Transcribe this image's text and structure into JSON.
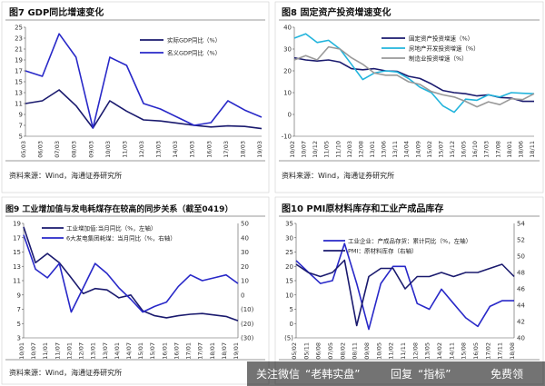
{
  "chart_data": [
    {
      "id": "fig7",
      "type": "line",
      "title": "图7 GDP同比增速变化",
      "x": [
        "05/03",
        "06/03",
        "07/03",
        "08/03",
        "09/03",
        "10/03",
        "11/03",
        "12/03",
        "13/03",
        "14/03",
        "15/03",
        "16/03",
        "17/03",
        "18/03",
        "19/03"
      ],
      "ylim": [
        5,
        25
      ],
      "yticks": [
        5,
        7,
        9,
        11,
        13,
        15,
        17,
        19,
        21,
        23,
        25
      ],
      "series": [
        {
          "name": "实际GDP同比（%）",
          "color": "#1a1a6e",
          "values": [
            11,
            11.5,
            13.5,
            10.6,
            6.5,
            11.5,
            9.6,
            8,
            7.8,
            7.4,
            7,
            6.7,
            6.9,
            6.8,
            6.4
          ]
        },
        {
          "name": "名义GDP同比（%）",
          "color": "#2828c8",
          "values": [
            17,
            16,
            23.8,
            19.5,
            6.5,
            19.5,
            18,
            11,
            10,
            8.5,
            7,
            7.5,
            11.5,
            9.8,
            8.5
          ]
        }
      ],
      "source": "资料来源：Wind，海通证券研究所"
    },
    {
      "id": "fig8",
      "type": "line",
      "title": "图8 固定资产投资增速变化",
      "x": [
        "10/02",
        "10/07",
        "10/12",
        "11/05",
        "11/10",
        "12/03",
        "12/08",
        "13/01",
        "13/06",
        "13/11",
        "14/04",
        "14/09",
        "15/02",
        "15/07",
        "15/12",
        "16/05",
        "16/10",
        "17/03",
        "17/08",
        "18/01",
        "18/06",
        "18/11"
      ],
      "ylim": [
        -10,
        40
      ],
      "yticks": [
        -10,
        0,
        10,
        20,
        30,
        40
      ],
      "series": [
        {
          "name": "固定资产投资增速（%）",
          "color": "#1a1a6e",
          "values": [
            26,
            25,
            24.5,
            25,
            24,
            21,
            20.5,
            21,
            20,
            19.8,
            17.5,
            16.5,
            14,
            11,
            10,
            9.5,
            8.5,
            9,
            7.8,
            7.5,
            6,
            6
          ]
        },
        {
          "name": "房地产开发投资增速（%）",
          "color": "#22b4dc",
          "values": [
            35,
            37,
            33,
            34,
            30,
            23,
            16,
            19,
            20,
            19.5,
            16.5,
            12.5,
            10,
            4,
            1,
            7,
            6.5,
            9,
            8,
            10,
            9.7,
            9.5
          ]
        },
        {
          "name": "制造业投资增速（%）",
          "color": "#999999",
          "values": [
            25,
            27,
            25,
            31,
            30,
            26,
            23,
            19,
            18,
            18,
            15,
            13.8,
            10.5,
            9,
            8,
            6,
            3.5,
            5.8,
            4.5,
            7.2,
            6.8,
            9.5
          ]
        }
      ],
      "source": "资料来源：Wind，海通证券研究所"
    },
    {
      "id": "fig9",
      "type": "line",
      "title": "图9 工业增加值与发电耗煤存在较高的同步关系（截至0419）",
      "x": [
        "10/01",
        "10/07",
        "11/01",
        "11/07",
        "12/01",
        "12/07",
        "13/01",
        "13/07",
        "14/01",
        "14/07",
        "15/01",
        "15/07",
        "16/01",
        "16/07",
        "17/01",
        "17/07",
        "18/01",
        "18/07",
        "19/01"
      ],
      "ylim": [
        3,
        19
      ],
      "yticks": [
        3,
        5,
        7,
        9,
        11,
        13,
        15,
        17,
        19
      ],
      "y2lim": [
        -30,
        50
      ],
      "y2ticks": [
        "(30)",
        "(20)",
        "(10)",
        "0",
        "10",
        "20",
        "30",
        "40",
        "50"
      ],
      "series": [
        {
          "name": "工业增加值:当月同比（%，左轴）",
          "color": "#1a1a6e",
          "axis": "left",
          "values": [
            18.5,
            13.5,
            14.8,
            13.5,
            11.4,
            9.2,
            9.9,
            9.7,
            8.6,
            9,
            6.8,
            6.1,
            5.8,
            6.1,
            6.3,
            6.4,
            6.2,
            6,
            5.4
          ]
        },
        {
          "name": "6大发电集团耗煤：当月同比（%，右轴）",
          "color": "#2828c8",
          "axis": "right",
          "values": [
            42,
            18,
            12,
            22,
            -12,
            5,
            22,
            15,
            5,
            -3,
            -12,
            -8,
            -5,
            6,
            14,
            10,
            12,
            14,
            8
          ]
        }
      ],
      "source": "资料来源：Wind，海通证券研究所"
    },
    {
      "id": "fig10",
      "type": "line",
      "title": "图10 PMI原材料库存和工业产成品库存",
      "x": [
        "05/02",
        "05/11",
        "06/08",
        "07/05",
        "08/02",
        "08/11",
        "09/08",
        "10/05",
        "11/02",
        "11/11",
        "12/08",
        "13/05",
        "14/02",
        "14/11",
        "15/08",
        "16/05",
        "17/02",
        "17/11",
        "18/08"
      ],
      "ylim": [
        -5,
        35
      ],
      "yticks": [
        "(5)",
        "0",
        "5",
        "10",
        "15",
        "20",
        "25",
        "30",
        "35"
      ],
      "y2lim": [
        40,
        54
      ],
      "y2ticks": [
        40,
        42,
        44,
        46,
        48,
        50,
        52,
        54
      ],
      "series": [
        {
          "name": "工业企业：产成品存货：累计同比（%，左轴）",
          "color": "#2828c8",
          "axis": "left",
          "values": [
            22,
            18,
            14,
            15,
            28,
            14,
            -2,
            14,
            20,
            20,
            7,
            5,
            12,
            7,
            2,
            -1,
            6,
            8,
            8
          ]
        },
        {
          "name": "PMI：原材料库存（右轴）",
          "color": "#1a1a6e",
          "axis": "right",
          "values": [
            49,
            48,
            47.5,
            48,
            49.5,
            41.5,
            47.5,
            48.5,
            48.5,
            46,
            47.5,
            47.5,
            48,
            47.5,
            48,
            48,
            48.5,
            49,
            47.5
          ]
        }
      ],
      "source": "资料来源：Wind，海通证券研究所"
    }
  ],
  "watermark": {
    "t1": "关注微信",
    "t2": "“老韩实盘”",
    "t3": "回复",
    "t4": "“指标”",
    "t5": "免费领"
  }
}
